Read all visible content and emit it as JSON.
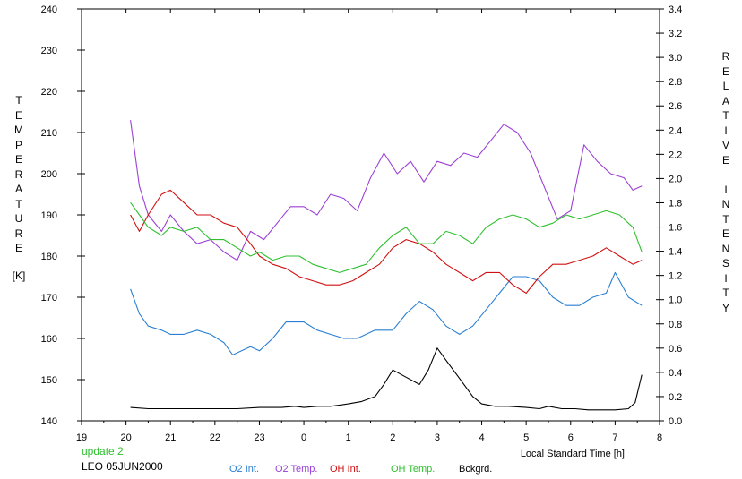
{
  "chart_data": {
    "type": "line",
    "xlabel": "Local Standard Time [h]",
    "ylabel_left": "TEMPERATURE",
    "ylabel_left_unit": "[K]",
    "ylabel_right": "RELATIVE INTENSITY",
    "xlim": [
      19,
      32
    ],
    "xticks": [
      19,
      20,
      21,
      22,
      23,
      24,
      25,
      26,
      27,
      28,
      29,
      30,
      31,
      32
    ],
    "xtick_labels": [
      "19",
      "20",
      "21",
      "22",
      "23",
      "0",
      "1",
      "2",
      "3",
      "4",
      "5",
      "6",
      "7",
      "8"
    ],
    "ylim_left": [
      140,
      240
    ],
    "yticks_left": [
      "140",
      "150",
      "160",
      "170",
      "180",
      "190",
      "200",
      "210",
      "220",
      "230",
      "240"
    ],
    "ylim_right": [
      0,
      3.4
    ],
    "yticks_right": [
      "0.0",
      "0.2",
      "0.4",
      "0.6",
      "0.8",
      "1.0",
      "1.2",
      "1.4",
      "1.6",
      "1.8",
      "2.0",
      "2.2",
      "2.4",
      "2.6",
      "2.8",
      "3.0",
      "3.2",
      "3.4"
    ],
    "grid": false,
    "series": [
      {
        "name": "O2 Int.",
        "color": "#2a7fd4",
        "axis": "left",
        "x": [
          20.1,
          20.3,
          20.5,
          20.8,
          21.0,
          21.3,
          21.6,
          21.9,
          22.2,
          22.4,
          22.6,
          22.8,
          23.0,
          23.3,
          23.6,
          24.0,
          24.3,
          24.6,
          24.9,
          25.2,
          25.6,
          26.0,
          26.3,
          26.6,
          26.9,
          27.2,
          27.5,
          27.8,
          28.1,
          28.4,
          28.7,
          29.0,
          29.3,
          29.6,
          29.9,
          30.2,
          30.5,
          30.8,
          31.0,
          31.3,
          31.6
        ],
        "y": [
          172,
          166,
          163,
          162,
          161,
          161,
          162,
          161,
          159,
          156,
          157,
          158,
          157,
          160,
          164,
          164,
          162,
          161,
          160,
          160,
          162,
          162,
          166,
          169,
          167,
          163,
          161,
          163,
          167,
          171,
          175,
          175,
          174,
          170,
          168,
          168,
          170,
          171,
          176,
          170,
          168
        ]
      },
      {
        "name": "O2 Temp.",
        "color": "#9b3fd6",
        "axis": "left",
        "x": [
          20.1,
          20.3,
          20.5,
          20.8,
          21.0,
          21.3,
          21.6,
          21.9,
          22.2,
          22.5,
          22.8,
          23.1,
          23.4,
          23.7,
          24.0,
          24.3,
          24.6,
          24.9,
          25.2,
          25.5,
          25.8,
          26.1,
          26.4,
          26.7,
          27.0,
          27.3,
          27.6,
          27.9,
          28.2,
          28.5,
          28.8,
          29.1,
          29.4,
          29.7,
          30.0,
          30.3,
          30.6,
          30.9,
          31.2,
          31.4,
          31.6
        ],
        "y": [
          213,
          197,
          190,
          186,
          190,
          186,
          183,
          184,
          181,
          179,
          186,
          184,
          188,
          192,
          192,
          190,
          195,
          194,
          191,
          199,
          205,
          200,
          203,
          198,
          203,
          202,
          205,
          204,
          208,
          212,
          210,
          205,
          197,
          189,
          191,
          207,
          203,
          200,
          199,
          196,
          197
        ]
      },
      {
        "name": "OH Int.",
        "color": "#d01010",
        "axis": "left",
        "x": [
          20.1,
          20.3,
          20.5,
          20.8,
          21.0,
          21.3,
          21.6,
          21.9,
          22.2,
          22.5,
          22.8,
          23.0,
          23.3,
          23.6,
          23.9,
          24.2,
          24.5,
          24.8,
          25.1,
          25.4,
          25.7,
          26.0,
          26.3,
          26.6,
          26.9,
          27.2,
          27.5,
          27.8,
          28.1,
          28.4,
          28.7,
          29.0,
          29.3,
          29.6,
          29.9,
          30.2,
          30.5,
          30.8,
          31.1,
          31.4,
          31.6
        ],
        "y": [
          190,
          186,
          190,
          195,
          196,
          193,
          190,
          190,
          188,
          187,
          183,
          180,
          178,
          177,
          175,
          174,
          173,
          173,
          174,
          176,
          178,
          182,
          184,
          183,
          181,
          178,
          176,
          174,
          176,
          176,
          173,
          171,
          175,
          178,
          178,
          179,
          180,
          182,
          180,
          178,
          179
        ]
      },
      {
        "name": "OH Temp.",
        "color": "#2fc02f",
        "axis": "left",
        "x": [
          20.1,
          20.3,
          20.5,
          20.8,
          21.0,
          21.3,
          21.6,
          21.9,
          22.2,
          22.5,
          22.8,
          23.0,
          23.3,
          23.6,
          23.9,
          24.2,
          24.5,
          24.8,
          25.1,
          25.4,
          25.7,
          26.0,
          26.3,
          26.6,
          26.9,
          27.2,
          27.5,
          27.8,
          28.1,
          28.4,
          28.7,
          29.0,
          29.3,
          29.6,
          29.9,
          30.2,
          30.5,
          30.8,
          31.1,
          31.4,
          31.6
        ],
        "y": [
          193,
          190,
          187,
          185,
          187,
          186,
          187,
          184,
          184,
          182,
          180,
          181,
          179,
          180,
          180,
          178,
          177,
          176,
          177,
          178,
          182,
          185,
          187,
          183,
          183,
          186,
          185,
          183,
          187,
          189,
          190,
          189,
          187,
          188,
          190,
          189,
          190,
          191,
          190,
          187,
          181
        ]
      },
      {
        "name": "Bckgrd.",
        "color": "#000000",
        "axis": "right",
        "x": [
          20.1,
          20.5,
          21.0,
          21.5,
          22.0,
          22.5,
          23.0,
          23.5,
          23.8,
          24.0,
          24.3,
          24.6,
          25.0,
          25.3,
          25.6,
          25.8,
          26.0,
          26.3,
          26.6,
          26.8,
          27.0,
          27.2,
          27.5,
          27.8,
          28.0,
          28.3,
          28.6,
          29.0,
          29.3,
          29.5,
          29.8,
          30.1,
          30.4,
          30.7,
          31.0,
          31.3,
          31.45,
          31.6
        ],
        "y": [
          0.11,
          0.1,
          0.1,
          0.1,
          0.1,
          0.1,
          0.11,
          0.11,
          0.12,
          0.11,
          0.12,
          0.12,
          0.14,
          0.16,
          0.2,
          0.3,
          0.42,
          0.36,
          0.3,
          0.42,
          0.6,
          0.5,
          0.35,
          0.2,
          0.14,
          0.12,
          0.12,
          0.11,
          0.1,
          0.12,
          0.1,
          0.1,
          0.09,
          0.09,
          0.09,
          0.1,
          0.15,
          0.38
        ]
      }
    ],
    "annotations": [
      "update 2",
      "LEO 05JUN2000"
    ]
  },
  "footer": {
    "update": "update 2",
    "station": "LEO 05JUN2000",
    "update_color": "#2fc02f"
  }
}
